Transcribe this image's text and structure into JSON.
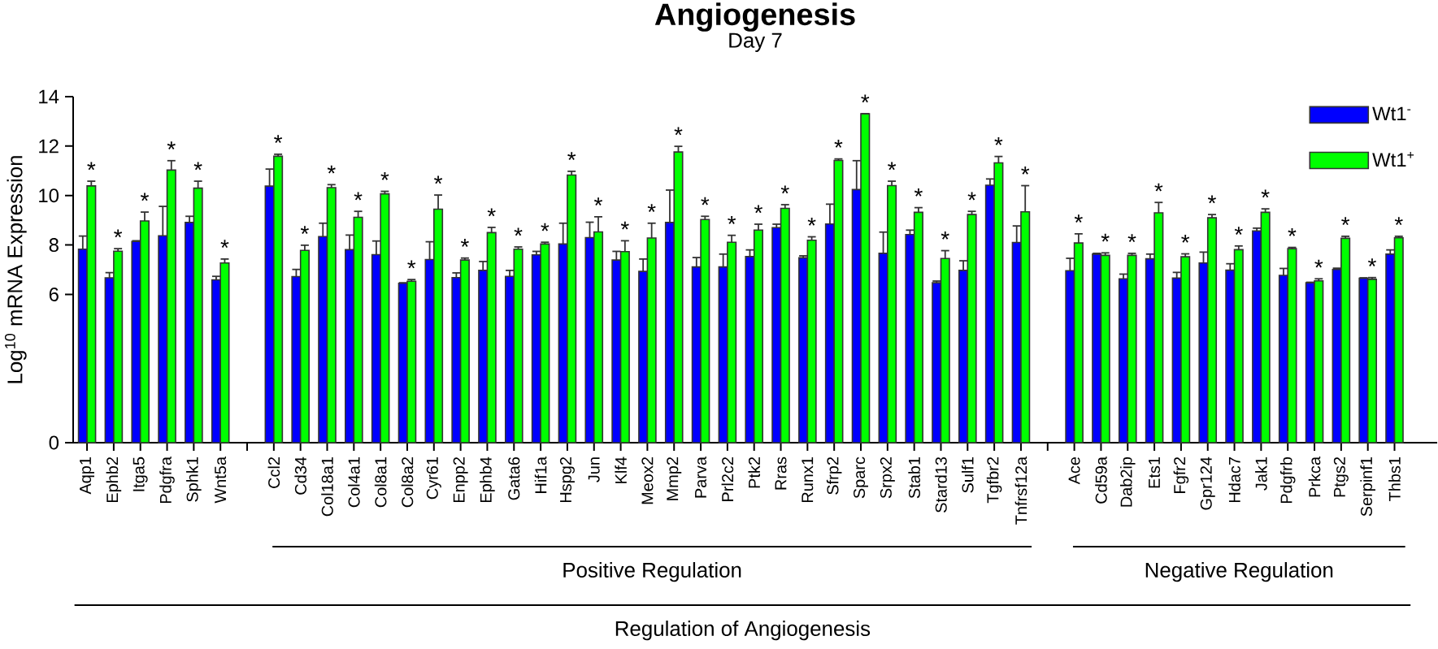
{
  "chart_data": {
    "type": "bar",
    "title": "Angiogenesis",
    "subtitle": "Day 7",
    "ylabel": "Log$^{10}$ mRNA Expression",
    "categories": [
      "Aqp1",
      "Ephb2",
      "Itga5",
      "Pdgfra",
      "Sphk1",
      "Wnt5a",
      null,
      "Ccl2",
      "Cd34",
      "Col18a1",
      "Col4a1",
      "Col8a1",
      "Col8a2",
      "Cyr61",
      "Enpp2",
      "Ephb4",
      "Gata6",
      "Hif1a",
      "Hspg2",
      "Jun",
      "Klf4",
      "Meox2",
      "Mmp2",
      "Parva",
      "Prl2c2",
      "Ptk2",
      "Rras",
      "Runx1",
      "Sfrp2",
      "Sparc",
      "Srpx2",
      "Stab1",
      "Stard13",
      "Sulf1",
      "Tgfbr2",
      "Tnfrsf12a",
      null,
      "Ace",
      "Cd59a",
      "Dab2ip",
      "Ets1",
      "Fgfr2",
      "Gpr124",
      "Hdac7",
      "Jak1",
      "Pdgfrb",
      "Prkca",
      "Ptgs2",
      "Serpinf1",
      "Thbs1"
    ],
    "series": [
      {
        "name": "Wt1$^{-}$",
        "color": "#0000ff",
        "values": [
          7.83,
          6.67,
          8.14,
          8.37,
          8.91,
          6.59,
          null,
          10.38,
          6.72,
          8.34,
          7.81,
          7.61,
          6.45,
          7.41,
          6.68,
          6.97,
          6.73,
          7.6,
          8.04,
          8.3,
          7.39,
          6.93,
          8.91,
          7.11,
          7.11,
          7.53,
          8.7,
          7.48,
          8.85,
          10.24,
          7.66,
          8.42,
          6.47,
          6.97,
          10.42,
          8.1,
          null,
          6.96,
          7.63,
          6.63,
          7.44,
          6.66,
          7.27,
          6.98,
          8.57,
          6.77,
          6.47,
          7.01,
          6.65,
          7.63
        ],
        "errors": [
          0.53,
          0.21,
          0.03,
          1.19,
          0.25,
          0.14,
          null,
          0.69,
          0.29,
          0.54,
          0.59,
          0.55,
          0.02,
          0.72,
          0.19,
          0.36,
          0.24,
          0.14,
          0.84,
          0.62,
          0.35,
          0.5,
          1.31,
          0.38,
          0.52,
          0.27,
          0.14,
          0.08,
          0.8,
          1.17,
          0.86,
          0.18,
          0.07,
          0.39,
          0.25,
          0.67,
          null,
          0.5,
          0.03,
          0.19,
          0.19,
          0.23,
          0.44,
          0.26,
          0.11,
          0.28,
          0.02,
          0.05,
          0.02,
          0.17
        ]
      },
      {
        "name": "Wt1$^{+}$",
        "color": "#00ff00",
        "values": [
          10.39,
          7.75,
          8.97,
          11.03,
          10.3,
          7.27,
          null,
          11.59,
          7.78,
          10.32,
          9.12,
          10.07,
          6.53,
          9.45,
          7.39,
          8.5,
          7.83,
          8.04,
          10.83,
          8.53,
          7.73,
          8.28,
          11.76,
          9.03,
          8.11,
          8.6,
          9.48,
          8.19,
          11.42,
          13.31,
          10.4,
          9.32,
          7.45,
          9.23,
          11.32,
          9.34,
          null,
          8.08,
          7.58,
          7.58,
          9.3,
          7.52,
          9.1,
          7.81,
          9.32,
          7.85,
          6.55,
          8.27,
          6.61,
          8.29
        ],
        "errors": [
          0.19,
          0.1,
          0.36,
          0.38,
          0.28,
          0.16,
          null,
          0.08,
          0.21,
          0.12,
          0.24,
          0.1,
          0.07,
          0.57,
          0.08,
          0.21,
          0.09,
          0.07,
          0.15,
          0.61,
          0.44,
          0.6,
          0.23,
          0.13,
          0.28,
          0.24,
          0.15,
          0.14,
          0.06,
          null,
          0.18,
          0.19,
          0.32,
          0.13,
          0.26,
          1.06,
          null,
          0.37,
          0.1,
          0.08,
          0.42,
          0.12,
          0.13,
          0.15,
          0.14,
          0.05,
          0.08,
          0.08,
          0.07,
          0.06
        ],
        "value_labels": [
          "*",
          "*",
          "*",
          "*",
          "*",
          "*",
          null,
          "*",
          "*",
          "*",
          "*",
          "*",
          "*",
          "*",
          "*",
          "*",
          "*",
          "*",
          "*",
          "*",
          "*",
          "*",
          "*",
          "*",
          "*",
          "*",
          "*",
          "*",
          "*",
          "*",
          "*",
          "*",
          "*",
          "*",
          "*",
          "*",
          null,
          "*",
          "*",
          "*",
          "*",
          "*",
          "*",
          "*",
          "*",
          "*",
          "*",
          "*",
          "*",
          "*"
        ]
      }
    ],
    "ylim": [
      0,
      14
    ],
    "yticks": [
      0,
      6,
      8,
      10,
      12,
      14
    ],
    "legend": "top right",
    "annotations": [
      "Positive Regulation",
      "Negative Regulation",
      "Regulation of Angiogenesis"
    ]
  }
}
